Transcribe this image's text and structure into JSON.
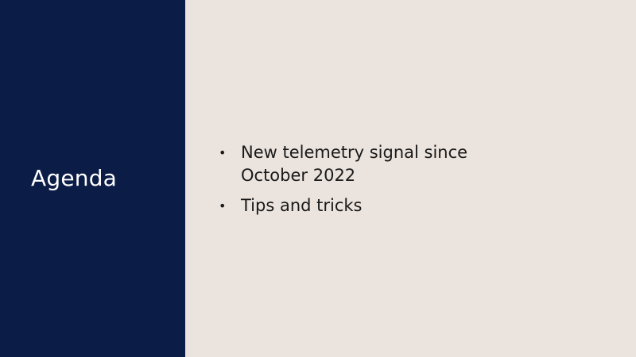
{
  "slide": {
    "title": "Agenda",
    "bullets": [
      "New telemetry signal since October 2022",
      "Tips and tricks"
    ]
  },
  "colors": {
    "left_panel_bg": "#0b1c47",
    "right_panel_bg": "#ebe3dd",
    "title_text": "#ffffff",
    "body_text": "#1a1a1a"
  }
}
